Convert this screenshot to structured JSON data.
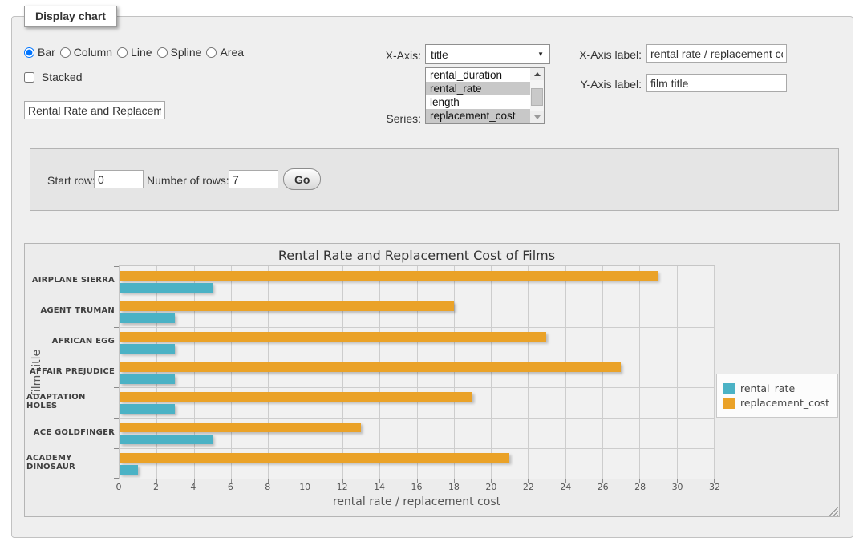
{
  "form": {
    "legend_title": "Display chart",
    "chart_type_options": [
      "Bar",
      "Column",
      "Line",
      "Spline",
      "Area"
    ],
    "selected_chart_type": "Bar",
    "stacked_label": "Stacked",
    "stacked_checked": false,
    "title_input_value": "Rental Rate and Replacement Cost of Films",
    "xaxis_select_label": "X-Axis:",
    "xaxis_selected": "title",
    "series_label": "Series:",
    "series_options": [
      {
        "label": "rental_duration",
        "selected": false
      },
      {
        "label": "rental_rate",
        "selected": true
      },
      {
        "label": "length",
        "selected": false
      },
      {
        "label": "replacement_cost",
        "selected": true
      }
    ],
    "xaxis_label_label": "X-Axis label:",
    "xaxis_label_value": "rental rate / replacement cost",
    "yaxis_label_label": "Y-Axis label:",
    "yaxis_label_value": "film title"
  },
  "rows_panel": {
    "start_row_label": "Start row:",
    "start_row_value": "0",
    "num_rows_label": "Number of rows:",
    "num_rows_value": "7",
    "go_label": "Go"
  },
  "chart_data": {
    "type": "bar",
    "orientation": "horizontal",
    "title": "Rental Rate and Replacement Cost of Films",
    "xlabel": "rental rate / replacement cost",
    "ylabel": "film title",
    "xlim": [
      0,
      32
    ],
    "xticks": [
      0,
      2,
      4,
      6,
      8,
      10,
      12,
      14,
      16,
      18,
      20,
      22,
      24,
      26,
      28,
      30,
      32
    ],
    "grid": true,
    "legend_position": "right",
    "categories": [
      "AIRPLANE SIERRA",
      "AGENT TRUMAN",
      "AFRICAN EGG",
      "AFFAIR PREJUDICE",
      "ADAPTATION HOLES",
      "ACE GOLDFINGER",
      "ACADEMY DINOSAUR"
    ],
    "series": [
      {
        "name": "rental_rate",
        "color": "#4bb2c5",
        "values": [
          4.99,
          2.99,
          2.99,
          2.99,
          2.99,
          4.99,
          0.99
        ]
      },
      {
        "name": "replacement_cost",
        "color": "#eaa228",
        "values": [
          28.99,
          17.99,
          22.99,
          26.99,
          18.99,
          12.99,
          20.99
        ]
      }
    ]
  }
}
